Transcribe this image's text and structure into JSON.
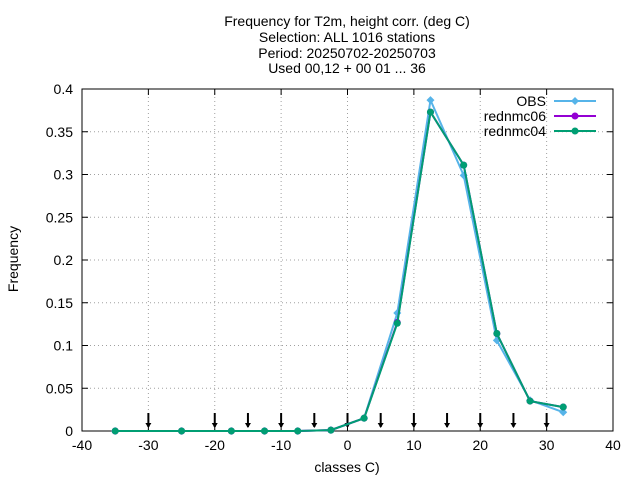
{
  "chart_data": {
    "type": "line",
    "title_lines": [
      "Frequency  for T2m, height corr. (deg C)",
      "Selection: ALL   1016 stations",
      "Period: 20250702-20250703",
      "Used 00,12 + 00 01 ... 36"
    ],
    "xlabel": "classes C)",
    "ylabel": "Frequency",
    "xlim": [
      -40,
      40
    ],
    "ylim": [
      0,
      0.4
    ],
    "xticks": [
      -40,
      -30,
      -20,
      -10,
      0,
      10,
      20,
      30,
      40
    ],
    "xtick_labels": [
      "-40",
      "-30",
      "-20",
      "-10",
      "0",
      "10",
      "20",
      "30",
      "40"
    ],
    "yticks": [
      0,
      0.05,
      0.1,
      0.15,
      0.2,
      0.25,
      0.3,
      0.35,
      0.4
    ],
    "ytick_labels": [
      "0",
      "0.05",
      "0.1",
      "0.15",
      "0.2",
      "0.25",
      "0.3",
      "0.35",
      "0.4"
    ],
    "grid": true,
    "legend_position": "top-right",
    "class_limits": [
      -30,
      -20,
      -15,
      -10,
      -5,
      0,
      5,
      10,
      15,
      20,
      25,
      30
    ],
    "x": [
      -35,
      -25,
      -17.5,
      -12.5,
      -7.5,
      -2.5,
      2.5,
      7.5,
      12.5,
      17.5,
      22.5,
      27.5,
      32.5
    ],
    "series": [
      {
        "name": "OBS",
        "color": "#56b4e9",
        "values": [
          0,
          0,
          0,
          0,
          0,
          0.001,
          0.015,
          0.138,
          0.387,
          0.299,
          0.106,
          0.036,
          0.022
        ]
      },
      {
        "name": "rednmc06",
        "color": "#9400d3",
        "values": [
          0,
          0,
          0,
          0,
          0,
          0.001,
          0.015,
          0.127,
          0.373,
          0.311,
          0.114,
          0.035,
          0.028
        ]
      },
      {
        "name": "rednmc04",
        "color": "#009e73",
        "values": [
          0,
          0,
          0,
          0,
          0,
          0.001,
          0.015,
          0.126,
          0.373,
          0.311,
          0.114,
          0.035,
          0.028
        ]
      }
    ]
  }
}
